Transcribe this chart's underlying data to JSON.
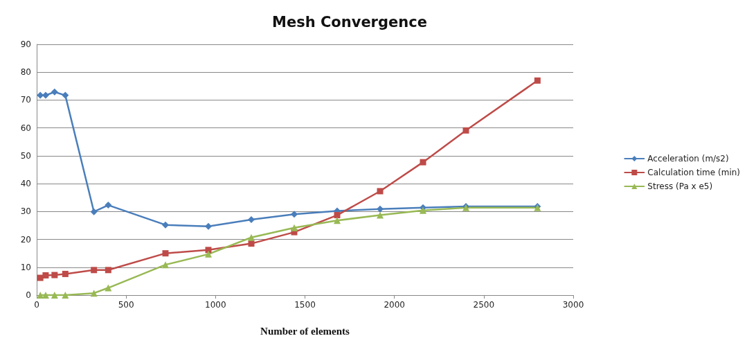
{
  "chart_data": {
    "type": "line",
    "title": "Mesh Convergence",
    "xlabel": "Number of elements",
    "x": [
      20,
      50,
      100,
      160,
      320,
      400,
      720,
      960,
      1200,
      1440,
      1680,
      1920,
      2160,
      2400,
      2800
    ],
    "series": [
      {
        "name": "Acceleration (m/s2)",
        "color": "#4a7ebb",
        "marker": "diamond",
        "values": [
          71.7,
          71.7,
          72.9,
          71.7,
          29.9,
          32.3,
          25.2,
          24.7,
          27.1,
          29,
          30.2,
          30.9,
          31.4,
          31.8,
          31.8
        ]
      },
      {
        "name": "Calculation time (min)",
        "color": "#be4b48",
        "marker": "square",
        "values": [
          6.2,
          7.1,
          7.2,
          7.6,
          9,
          9,
          15,
          16.2,
          18.5,
          22.6,
          28.7,
          37.3,
          47.7,
          59.1,
          77
        ]
      },
      {
        "name": "Stress (Pa x e5)",
        "color": "#98b954",
        "marker": "triangle",
        "values": [
          0,
          0,
          0,
          0,
          0.7,
          2.6,
          10.9,
          14.7,
          20.7,
          24.2,
          26.8,
          28.7,
          30.4,
          31.4,
          31.4
        ]
      }
    ],
    "xlim": [
      0,
      3000
    ],
    "xticks": [
      0,
      500,
      1000,
      1500,
      2000,
      2500,
      3000
    ],
    "ylim": [
      0,
      90
    ],
    "yticks": [
      0,
      10,
      20,
      30,
      40,
      50,
      60,
      70,
      80,
      90
    ],
    "grid": "y",
    "legend": "right",
    "line_style": "solid"
  }
}
